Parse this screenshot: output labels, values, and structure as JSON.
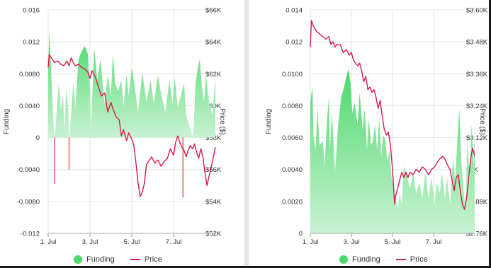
{
  "colors": {
    "funding": "#4cd96b",
    "funding_neg": "#e8463c",
    "price": "#d81b4b",
    "grid": "#e6e6e6",
    "axis_text": "#333333"
  },
  "legend": {
    "funding": "Funding",
    "price": "Price"
  },
  "chart_data": [
    {
      "type": "area",
      "left_axis_label": "Funding",
      "right_axis_label": "Price ($)",
      "x_ticks": [
        "1. Jul",
        "3. Jul",
        "5. Jul",
        "7. Jul"
      ],
      "x_range": [
        0,
        8
      ],
      "funding_range": [
        -0.012,
        0.016
      ],
      "funding_ticks": [
        "-0.012",
        "-0.0080",
        "-0.0040",
        "0",
        "0.0040",
        "0.0080",
        "0.012",
        "0.016"
      ],
      "price_range": [
        52000,
        66000
      ],
      "price_ticks": [
        "$52K",
        "$54K",
        "$56K",
        "$58K",
        "$60K",
        "$62K",
        "$64K",
        "$66K"
      ],
      "funding": [
        [
          0,
          0.0085
        ],
        [
          0.05,
          0.0132
        ],
        [
          0.15,
          0.008
        ],
        [
          0.25,
          0.002
        ],
        [
          0.3,
          -0.0058
        ],
        [
          0.35,
          0.001
        ],
        [
          0.5,
          0.0068
        ],
        [
          0.6,
          0.0035
        ],
        [
          0.7,
          0.0052
        ],
        [
          0.8,
          0.0008
        ],
        [
          0.85,
          0.0062
        ],
        [
          0.95,
          0.0038
        ],
        [
          1.0,
          -0.004
        ],
        [
          1.05,
          0.0012
        ],
        [
          1.2,
          0.0068
        ],
        [
          1.3,
          0.0036
        ],
        [
          1.45,
          0.0098
        ],
        [
          1.6,
          0.0108
        ],
        [
          1.75,
          0.0115
        ],
        [
          1.9,
          0.0105
        ],
        [
          2.0,
          0.0058
        ],
        [
          2.05,
          0.0012
        ],
        [
          2.2,
          0.0112
        ],
        [
          2.35,
          0.0072
        ],
        [
          2.5,
          0.0098
        ],
        [
          2.6,
          0.0068
        ],
        [
          2.7,
          0.0042
        ],
        [
          2.85,
          0.0078
        ],
        [
          3.0,
          0.0052
        ],
        [
          3.1,
          0.0105
        ],
        [
          3.2,
          0.0068
        ],
        [
          3.35,
          0.0058
        ],
        [
          3.5,
          0.0072
        ],
        [
          3.6,
          0.0038
        ],
        [
          3.75,
          0.0078
        ],
        [
          3.85,
          0.0052
        ],
        [
          4.0,
          0.0088
        ],
        [
          4.15,
          0.0062
        ],
        [
          4.3,
          0.0032
        ],
        [
          4.5,
          0.0082
        ],
        [
          4.7,
          0.0045
        ],
        [
          4.9,
          0.0072
        ],
        [
          5.05,
          0.0042
        ],
        [
          5.25,
          0.0078
        ],
        [
          5.4,
          0.0055
        ],
        [
          5.6,
          0.0032
        ],
        [
          5.8,
          0.0072
        ],
        [
          5.95,
          0.0042
        ],
        [
          6.05,
          0.0075
        ],
        [
          6.2,
          0.0038
        ],
        [
          6.35,
          0.0052
        ],
        [
          6.5,
          0.0068
        ],
        [
          6.6,
          0.0028
        ],
        [
          6.75,
          0.0015
        ],
        [
          6.85,
          0.0005
        ],
        [
          6.95,
          0.0002
        ],
        [
          7.0,
          0.0035
        ],
        [
          7.05,
          0.0068
        ],
        [
          7.15,
          0.0085
        ],
        [
          7.25,
          0.0098
        ],
        [
          7.35,
          0.0065
        ],
        [
          7.45,
          0.0045
        ],
        [
          7.55,
          0.0078
        ],
        [
          7.7,
          0.0045
        ],
        [
          7.85,
          0.0028
        ],
        [
          7.95,
          0.0058
        ],
        [
          8.0,
          0.0075
        ]
      ],
      "price": [
        [
          0,
          62400
        ],
        [
          0.05,
          63200
        ],
        [
          0.15,
          63000
        ],
        [
          0.3,
          62700
        ],
        [
          0.45,
          62800
        ],
        [
          0.6,
          62600
        ],
        [
          0.75,
          62500
        ],
        [
          0.9,
          62800
        ],
        [
          1.0,
          62500
        ],
        [
          1.1,
          63000
        ],
        [
          1.2,
          62700
        ],
        [
          1.3,
          62500
        ],
        [
          1.45,
          62600
        ],
        [
          1.6,
          62400
        ],
        [
          1.75,
          62300
        ],
        [
          1.9,
          62100
        ],
        [
          2.0,
          61700
        ],
        [
          2.1,
          62200
        ],
        [
          2.25,
          61800
        ],
        [
          2.4,
          61200
        ],
        [
          2.55,
          60600
        ],
        [
          2.7,
          60800
        ],
        [
          2.85,
          59600
        ],
        [
          3.0,
          60200
        ],
        [
          3.1,
          59800
        ],
        [
          3.25,
          59300
        ],
        [
          3.4,
          59100
        ],
        [
          3.5,
          58100
        ],
        [
          3.6,
          58500
        ],
        [
          3.75,
          57800
        ],
        [
          3.85,
          58300
        ],
        [
          4.0,
          57900
        ],
        [
          4.1,
          57500
        ],
        [
          4.2,
          56400
        ],
        [
          4.3,
          55200
        ],
        [
          4.4,
          54300
        ],
        [
          4.5,
          54600
        ],
        [
          4.6,
          55100
        ],
        [
          4.7,
          56300
        ],
        [
          4.8,
          56500
        ],
        [
          4.95,
          56800
        ],
        [
          5.1,
          56400
        ],
        [
          5.25,
          56600
        ],
        [
          5.4,
          56200
        ],
        [
          5.55,
          56500
        ],
        [
          5.7,
          56700
        ],
        [
          5.85,
          57300
        ],
        [
          6.0,
          56900
        ],
        [
          6.1,
          57700
        ],
        [
          6.2,
          58100
        ],
        [
          6.3,
          57700
        ],
        [
          6.4,
          57400
        ],
        [
          6.5,
          57200
        ],
        [
          6.6,
          56800
        ],
        [
          6.7,
          57200
        ],
        [
          6.8,
          57500
        ],
        [
          6.9,
          57300
        ],
        [
          7.0,
          57600
        ],
        [
          7.1,
          57100
        ],
        [
          7.2,
          56700
        ],
        [
          7.3,
          57300
        ],
        [
          7.4,
          56800
        ],
        [
          7.5,
          55800
        ],
        [
          7.6,
          55000
        ],
        [
          7.7,
          55600
        ],
        [
          7.8,
          56100
        ],
        [
          7.9,
          56800
        ],
        [
          8.0,
          57400
        ]
      ],
      "neg_spikes": [
        [
          0.3,
          -0.0058
        ],
        [
          1.0,
          -0.004
        ],
        [
          6.45,
          -0.0075
        ]
      ]
    },
    {
      "type": "area",
      "left_axis_label": "Funding",
      "right_axis_label": "Price ($)",
      "x_ticks": [
        "1. Jul",
        "3. Jul",
        "5. Jul",
        "7. Jul"
      ],
      "x_range": [
        0,
        8
      ],
      "funding_range": [
        0,
        0.014
      ],
      "funding_ticks": [
        "0",
        "0.0020",
        "0.0040",
        "0.0060",
        "0.0080",
        "0.0100",
        "0.012",
        "0.014"
      ],
      "price_range": [
        2760,
        3600
      ],
      "price_ticks": [
        "$2.76K",
        "$2.88K",
        "$3K",
        "$3.12K",
        "$3.24K",
        "$3.36K",
        "$3.48K",
        "$3.60K"
      ],
      "funding": [
        [
          0,
          0.0082
        ],
        [
          0.1,
          0.0092
        ],
        [
          0.15,
          0.0062
        ],
        [
          0.25,
          0.0052
        ],
        [
          0.35,
          0.0078
        ],
        [
          0.45,
          0.0055
        ],
        [
          0.6,
          0.0058
        ],
        [
          0.7,
          0.0042
        ],
        [
          0.8,
          0.0068
        ],
        [
          0.9,
          0.0085
        ],
        [
          0.95,
          0.0052
        ],
        [
          1.05,
          0.0075
        ],
        [
          1.2,
          0.0038
        ],
        [
          1.35,
          0.0068
        ],
        [
          1.5,
          0.0085
        ],
        [
          1.65,
          0.0092
        ],
        [
          1.75,
          0.0098
        ],
        [
          1.85,
          0.0103
        ],
        [
          1.95,
          0.0095
        ],
        [
          2.05,
          0.0075
        ],
        [
          2.15,
          0.0082
        ],
        [
          2.3,
          0.0068
        ],
        [
          2.4,
          0.0088
        ],
        [
          2.55,
          0.0065
        ],
        [
          2.65,
          0.0078
        ],
        [
          2.75,
          0.0052
        ],
        [
          2.85,
          0.0072
        ],
        [
          2.95,
          0.0055
        ],
        [
          3.05,
          0.0058
        ],
        [
          3.15,
          0.0068
        ],
        [
          3.25,
          0.0052
        ],
        [
          3.35,
          0.0072
        ],
        [
          3.45,
          0.0048
        ],
        [
          3.55,
          0.0062
        ],
        [
          3.65,
          0.0058
        ],
        [
          3.75,
          0.0045
        ],
        [
          3.85,
          0.0052
        ],
        [
          3.95,
          0.0035
        ],
        [
          4.05,
          0.0028
        ],
        [
          4.15,
          0.0022
        ],
        [
          4.25,
          0.0015
        ],
        [
          4.35,
          0.0025
        ],
        [
          4.45,
          0.0018
        ],
        [
          4.55,
          0.0042
        ],
        [
          4.7,
          0.0036
        ],
        [
          4.85,
          0.0028
        ],
        [
          5.0,
          0.0038
        ],
        [
          5.15,
          0.0025
        ],
        [
          5.3,
          0.0032
        ],
        [
          5.45,
          0.0022
        ],
        [
          5.6,
          0.0038
        ],
        [
          5.75,
          0.0022
        ],
        [
          5.9,
          0.0035
        ],
        [
          6.05,
          0.0018
        ],
        [
          6.15,
          0.0032
        ],
        [
          6.3,
          0.0025
        ],
        [
          6.4,
          0.0038
        ],
        [
          6.55,
          0.0022
        ],
        [
          6.65,
          0.0035
        ],
        [
          6.8,
          0.0018
        ],
        [
          6.95,
          0.0048
        ],
        [
          7.05,
          0.0032
        ],
        [
          7.15,
          0.0058
        ],
        [
          7.25,
          0.0078
        ],
        [
          7.35,
          0.0045
        ],
        [
          7.45,
          0.0028
        ],
        [
          7.55,
          0.0015
        ],
        [
          7.65,
          0.0058
        ],
        [
          7.75,
          0.0032
        ],
        [
          7.85,
          0.0068
        ],
        [
          7.95,
          0.0042
        ],
        [
          8.0,
          0.0065
        ]
      ],
      "price": [
        [
          0,
          3460
        ],
        [
          0.05,
          3560
        ],
        [
          0.15,
          3540
        ],
        [
          0.3,
          3520
        ],
        [
          0.45,
          3510
        ],
        [
          0.6,
          3500
        ],
        [
          0.75,
          3490
        ],
        [
          0.9,
          3500
        ],
        [
          1.0,
          3470
        ],
        [
          1.1,
          3480
        ],
        [
          1.2,
          3460
        ],
        [
          1.3,
          3470
        ],
        [
          1.45,
          3470
        ],
        [
          1.6,
          3440
        ],
        [
          1.75,
          3450
        ],
        [
          1.9,
          3430
        ],
        [
          2.0,
          3440
        ],
        [
          2.1,
          3410
        ],
        [
          2.2,
          3400
        ],
        [
          2.3,
          3390
        ],
        [
          2.4,
          3400
        ],
        [
          2.5,
          3370
        ],
        [
          2.6,
          3330
        ],
        [
          2.7,
          3350
        ],
        [
          2.8,
          3300
        ],
        [
          2.9,
          3310
        ],
        [
          3.0,
          3290
        ],
        [
          3.1,
          3300
        ],
        [
          3.2,
          3270
        ],
        [
          3.3,
          3230
        ],
        [
          3.4,
          3260
        ],
        [
          3.5,
          3200
        ],
        [
          3.6,
          3150
        ],
        [
          3.7,
          3130
        ],
        [
          3.8,
          3140
        ],
        [
          3.9,
          3090
        ],
        [
          4.0,
          3000
        ],
        [
          4.05,
          2940
        ],
        [
          4.1,
          2870
        ],
        [
          4.15,
          2900
        ],
        [
          4.25,
          2930
        ],
        [
          4.35,
          2960
        ],
        [
          4.45,
          2990
        ],
        [
          4.55,
          2970
        ],
        [
          4.65,
          2990
        ],
        [
          4.75,
          2970
        ],
        [
          4.85,
          2990
        ],
        [
          5.0,
          2980
        ],
        [
          5.15,
          3000
        ],
        [
          5.3,
          2990
        ],
        [
          5.45,
          3010
        ],
        [
          5.6,
          3000
        ],
        [
          5.75,
          2980
        ],
        [
          5.9,
          3000
        ],
        [
          6.05,
          3010
        ],
        [
          6.2,
          3030
        ],
        [
          6.3,
          3040
        ],
        [
          6.45,
          3050
        ],
        [
          6.55,
          3040
        ],
        [
          6.65,
          3020
        ],
        [
          6.8,
          3000
        ],
        [
          6.9,
          2960
        ],
        [
          7.0,
          2920
        ],
        [
          7.1,
          2970
        ],
        [
          7.2,
          2980
        ],
        [
          7.3,
          2920
        ],
        [
          7.4,
          2870
        ],
        [
          7.5,
          2850
        ],
        [
          7.6,
          2890
        ],
        [
          7.7,
          2960
        ],
        [
          7.8,
          3040
        ],
        [
          7.9,
          3080
        ],
        [
          8.0,
          3050
        ]
      ]
    }
  ]
}
